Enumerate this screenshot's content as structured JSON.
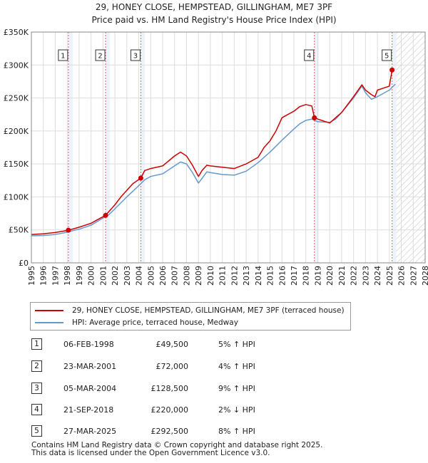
{
  "title_line1": "29, HONEY CLOSE, HEMPSTEAD, GILLINGHAM, ME7 3PF",
  "title_line2": "Price paid vs. HM Land Registry's House Price Index (HPI)",
  "colors": {
    "property_line": "#cc0000",
    "hpi_line": "#6699cc",
    "marker": "#cc0000",
    "sale_vline": "#e06060",
    "sale_shade": "#eef2fb",
    "future_hatch": "#bbbbbb",
    "grid": "#dddddd"
  },
  "legend": {
    "property_label": "29, HONEY CLOSE, HEMPSTEAD, GILLINGHAM, ME7 3PF (terraced house)",
    "hpi_label": "HPI: Average price, terraced house, Medway"
  },
  "sales": [
    {
      "num": "1",
      "date": "06-FEB-1998",
      "price": "£49,500",
      "hpi": "5% ↑ HPI"
    },
    {
      "num": "2",
      "date": "23-MAR-2001",
      "price": "£72,000",
      "hpi": "4% ↑ HPI"
    },
    {
      "num": "3",
      "date": "05-MAR-2004",
      "price": "£128,500",
      "hpi": "9% ↑ HPI"
    },
    {
      "num": "4",
      "date": "21-SEP-2018",
      "price": "£220,000",
      "hpi": "2% ↓ HPI"
    },
    {
      "num": "5",
      "date": "27-MAR-2025",
      "price": "£292,500",
      "hpi": "8% ↑ HPI"
    }
  ],
  "footer_line1": "Contains HM Land Registry data © Crown copyright and database right 2025.",
  "footer_line2": "This data is licensed under the Open Government Licence v3.0.",
  "chart_data": {
    "type": "line",
    "title": "29, HONEY CLOSE, HEMPSTEAD, GILLINGHAM, ME7 3PF",
    "subtitle": "Price paid vs. HM Land Registry's House Price Index (HPI)",
    "xlabel": "",
    "ylabel": "",
    "xlim": [
      1995,
      2028
    ],
    "ylim": [
      0,
      350000
    ],
    "x_ticks": [
      1995,
      1996,
      1997,
      1998,
      1999,
      2000,
      2001,
      2002,
      2003,
      2004,
      2005,
      2006,
      2007,
      2008,
      2009,
      2010,
      2011,
      2012,
      2013,
      2014,
      2015,
      2016,
      2017,
      2018,
      2019,
      2020,
      2021,
      2022,
      2023,
      2024,
      2025,
      2026,
      2027,
      2028
    ],
    "y_ticks": [
      0,
      50000,
      100000,
      150000,
      200000,
      250000,
      300000,
      350000
    ],
    "y_tick_labels": [
      "£0",
      "£50K",
      "£100K",
      "£150K",
      "£200K",
      "£250K",
      "£300K",
      "£350K"
    ],
    "grid": true,
    "future_hatch_from": 2025.3,
    "sale_points": [
      {
        "label": "1",
        "x": 1998.1,
        "y": 49500
      },
      {
        "label": "2",
        "x": 2001.22,
        "y": 72000
      },
      {
        "label": "3",
        "x": 2004.17,
        "y": 128500
      },
      {
        "label": "4",
        "x": 2018.72,
        "y": 220000
      },
      {
        "label": "5",
        "x": 2025.23,
        "y": 292500
      }
    ],
    "series": [
      {
        "name": "29, HONEY CLOSE, HEMPSTEAD, GILLINGHAM, ME7 3PF (terraced house)",
        "x": [
          1995,
          1996,
          1997,
          1997.5,
          1998.1,
          1999,
          1999.5,
          2000,
          2000.5,
          2001.22,
          2002,
          2002.5,
          2003,
          2003.5,
          2004.17,
          2004.5,
          2005,
          2006,
          2007,
          2007.5,
          2008,
          2008.5,
          2009,
          2009.3,
          2009.7,
          2010,
          2011,
          2012,
          2013,
          2014,
          2014.5,
          2015,
          2015.5,
          2016,
          2016.5,
          2017,
          2017.5,
          2018,
          2018.5,
          2018.72,
          2019,
          2020,
          2020.5,
          2021,
          2022,
          2022.7,
          2023,
          2023.5,
          2023.8,
          2024,
          2024.5,
          2025,
          2025.23
        ],
        "y": [
          43000,
          44000,
          46000,
          47500,
          49500,
          54000,
          57000,
          60000,
          65000,
          72000,
          88000,
          100000,
          110000,
          120000,
          128500,
          140000,
          143000,
          147000,
          162000,
          168000,
          162000,
          148000,
          131000,
          140000,
          148000,
          147000,
          145000,
          143000,
          150000,
          160000,
          175000,
          185000,
          200000,
          220000,
          225000,
          230000,
          237000,
          240000,
          238000,
          220000,
          218000,
          212000,
          220000,
          228000,
          252000,
          270000,
          262000,
          255000,
          252000,
          262000,
          265000,
          268000,
          292500
        ]
      },
      {
        "name": "HPI: Average price, terraced house, Medway",
        "x": [
          1995,
          1996,
          1997,
          1998,
          1998.5,
          1999,
          2000,
          2001,
          2001.5,
          2002,
          2003,
          2004,
          2004.5,
          2005,
          2006,
          2007,
          2007.5,
          2008,
          2008.5,
          2009,
          2009.3,
          2009.7,
          2010,
          2011,
          2012,
          2013,
          2014,
          2015,
          2016,
          2017,
          2017.5,
          2018,
          2018.5,
          2019,
          2020,
          2020.5,
          2021,
          2022,
          2022.7,
          2023,
          2023.5,
          2024,
          2024.5,
          2025,
          2025.5
        ],
        "y": [
          41000,
          41500,
          43000,
          46500,
          49000,
          51000,
          57000,
          68000,
          73000,
          82000,
          100000,
          117000,
          126000,
          131000,
          135000,
          147000,
          153000,
          150000,
          137000,
          121000,
          128000,
          138000,
          137000,
          134000,
          133000,
          139000,
          152000,
          168000,
          186000,
          203000,
          211000,
          216000,
          218000,
          214000,
          213000,
          218000,
          228000,
          250000,
          268000,
          258000,
          248000,
          252000,
          257000,
          262000,
          271000
        ]
      }
    ]
  }
}
